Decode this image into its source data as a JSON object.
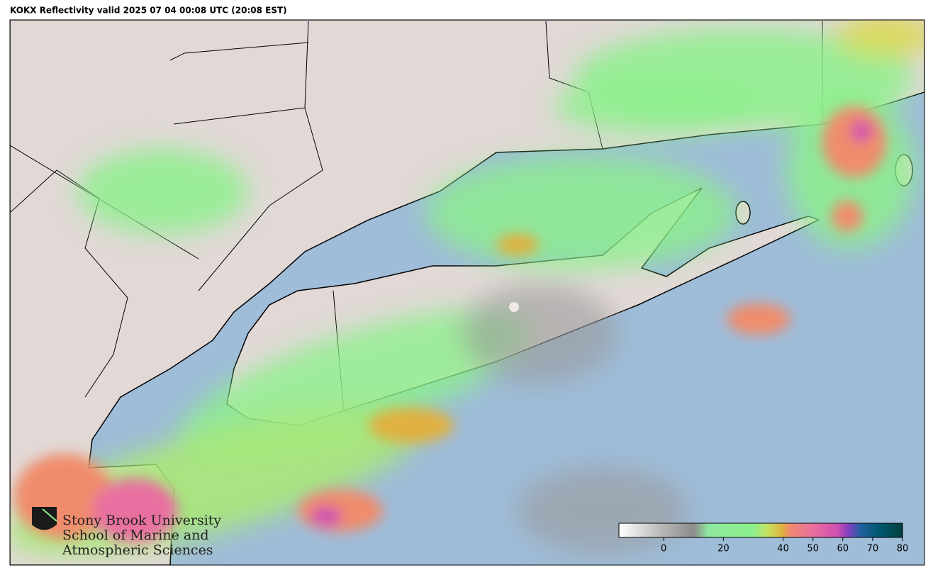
{
  "header": {
    "title": "KOKX Reflectivity valid 2025 07 04 00:08 UTC (20:08 EST)"
  },
  "colorbar": {
    "lim": [
      -15,
      80
    ],
    "ticks": [
      0,
      20,
      40,
      50,
      60,
      70,
      80
    ],
    "stops": [
      {
        "value": -15,
        "color": "#ffffff"
      },
      {
        "value": 0,
        "color": "#b4b4b4"
      },
      {
        "value": 10,
        "color": "#8c8c8c"
      },
      {
        "value": 15,
        "color": "#90e8a0"
      },
      {
        "value": 30,
        "color": "#8cf08c"
      },
      {
        "value": 35,
        "color": "#c8e060"
      },
      {
        "value": 40,
        "color": "#e0b040"
      },
      {
        "value": 42,
        "color": "#f08c6c"
      },
      {
        "value": 50,
        "color": "#e870a0"
      },
      {
        "value": 58,
        "color": "#d050b0"
      },
      {
        "value": 62,
        "color": "#8040c0"
      },
      {
        "value": 66,
        "color": "#2060a0"
      },
      {
        "value": 72,
        "color": "#005870"
      },
      {
        "value": 80,
        "color": "#004040"
      }
    ]
  },
  "logo": {
    "line1": "Stony Brook University",
    "line2": "School of Marine and",
    "line3": "Atmospheric Sciences"
  }
}
